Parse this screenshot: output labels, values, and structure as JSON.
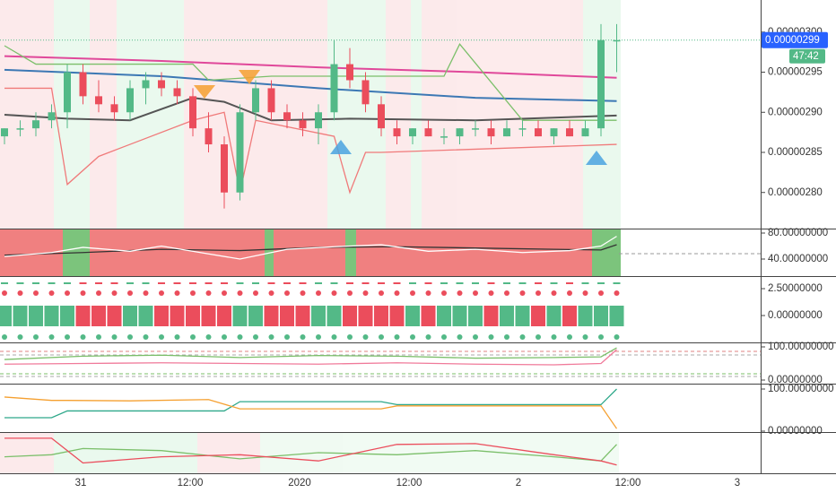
{
  "chart_data": [
    {
      "type": "candlestick",
      "open": [
        2.87e-06,
        2.88e-06,
        2.88e-06,
        2.89e-06,
        2.9e-06,
        2.95e-06,
        2.92e-06,
        2.91e-06,
        2.9e-06,
        2.93e-06,
        2.94e-06,
        2.93e-06,
        2.92e-06,
        2.88e-06,
        2.86e-06,
        2.8e-06,
        2.9e-06,
        2.93e-06,
        2.9e-06,
        2.89e-06,
        2.88e-06,
        2.9e-06,
        2.96e-06,
        2.94e-06,
        2.91e-06,
        2.88e-06,
        2.87e-06,
        2.88e-06,
        2.87e-06,
        2.87e-06,
        2.88e-06,
        2.88e-06,
        2.87e-06,
        2.88e-06,
        2.88e-06,
        2.87e-06,
        2.88e-06,
        2.87e-06,
        2.88e-06,
        2.99e-06
      ],
      "high": [
        2.88e-06,
        2.89e-06,
        2.9e-06,
        2.91e-06,
        2.96e-06,
        2.96e-06,
        2.94e-06,
        2.92e-06,
        2.94e-06,
        2.95e-06,
        2.95e-06,
        2.94e-06,
        2.93e-06,
        2.9e-06,
        2.87e-06,
        2.91e-06,
        2.94e-06,
        2.94e-06,
        2.91e-06,
        2.9e-06,
        2.91e-06,
        2.99e-06,
        2.98e-06,
        2.95e-06,
        2.92e-06,
        2.89e-06,
        2.88e-06,
        2.89e-06,
        2.88e-06,
        2.88e-06,
        2.89e-06,
        2.89e-06,
        2.89e-06,
        2.89e-06,
        2.89e-06,
        2.88e-06,
        2.89e-06,
        2.89e-06,
        3.01e-06,
        3.01e-06
      ],
      "low": [
        2.86e-06,
        2.87e-06,
        2.87e-06,
        2.88e-06,
        2.88e-06,
        2.91e-06,
        2.9e-06,
        2.89e-06,
        2.89e-06,
        2.91e-06,
        2.92e-06,
        2.91e-06,
        2.87e-06,
        2.85e-06,
        2.78e-06,
        2.79e-06,
        2.89e-06,
        2.89e-06,
        2.88e-06,
        2.87e-06,
        2.86e-06,
        2.89e-06,
        2.93e-06,
        2.9e-06,
        2.87e-06,
        2.86e-06,
        2.86e-06,
        2.87e-06,
        2.86e-06,
        2.86e-06,
        2.87e-06,
        2.86e-06,
        2.87e-06,
        2.87e-06,
        2.87e-06,
        2.86e-06,
        2.87e-06,
        2.87e-06,
        2.87e-06,
        2.95e-06
      ],
      "close": [
        2.88e-06,
        2.88e-06,
        2.89e-06,
        2.9e-06,
        2.95e-06,
        2.92e-06,
        2.91e-06,
        2.9e-06,
        2.93e-06,
        2.94e-06,
        2.93e-06,
        2.92e-06,
        2.88e-06,
        2.86e-06,
        2.8e-06,
        2.9e-06,
        2.93e-06,
        2.9e-06,
        2.89e-06,
        2.88e-06,
        2.9e-06,
        2.96e-06,
        2.94e-06,
        2.91e-06,
        2.88e-06,
        2.87e-06,
        2.88e-06,
        2.87e-06,
        2.87e-06,
        2.88e-06,
        2.88e-06,
        2.87e-06,
        2.88e-06,
        2.88e-06,
        2.87e-06,
        2.88e-06,
        2.87e-06,
        2.88e-06,
        2.99e-06,
        2.99e-06
      ],
      "up_color": "#53b987",
      "down_color": "#eb4d5c",
      "ylim": [
        2.755e-06,
        3.04e-06
      ],
      "yticks": [
        {
          "value": 2.8e-06,
          "label": "0.00000280"
        },
        {
          "value": 2.85e-06,
          "label": "0.00000285"
        },
        {
          "value": 2.9e-06,
          "label": "0.00000290"
        },
        {
          "value": 2.95e-06,
          "label": "0.00000295"
        },
        {
          "value": 3e-06,
          "label": "0.00000300"
        }
      ],
      "series": [
        {
          "color": "#e0489a",
          "x": [
            0,
            10,
            20,
            30,
            39
          ],
          "values": [
            2.97e-06,
            2.964e-06,
            2.956e-06,
            2.95e-06,
            2.943e-06
          ]
        },
        {
          "color": "#3c78b4",
          "x": [
            0,
            10,
            20,
            30,
            39
          ],
          "values": [
            2.953e-06,
            2.945e-06,
            2.93e-06,
            2.918e-06,
            2.914e-06
          ]
        },
        {
          "color": "#555555",
          "x": [
            0,
            4,
            8,
            12,
            14,
            17,
            22,
            30,
            39
          ],
          "values": [
            2.897e-06,
            2.892e-06,
            2.89e-06,
            2.918e-06,
            2.913e-06,
            2.89e-06,
            2.892e-06,
            2.89e-06,
            2.896e-06
          ]
        },
        {
          "color": "#7bbf6a",
          "x": [
            0,
            2,
            5,
            12,
            13,
            17,
            28,
            29,
            33,
            39
          ],
          "values": [
            2.983e-06,
            2.96e-06,
            2.96e-06,
            2.96e-06,
            2.94e-06,
            2.945e-06,
            2.945e-06,
            2.985e-06,
            2.89e-06,
            2.89e-06
          ]
        },
        {
          "color": "#f07a7a",
          "x": [
            0,
            3,
            4,
            6,
            8,
            12,
            14,
            15,
            16,
            21,
            22,
            23,
            24,
            39
          ],
          "values": [
            2.93e-06,
            2.93e-06,
            2.81e-06,
            2.845e-06,
            2.86e-06,
            2.89e-06,
            2.9e-06,
            2.8e-06,
            2.89e-06,
            2.87e-06,
            2.8e-06,
            2.85e-06,
            2.85e-06,
            2.86e-06
          ]
        }
      ],
      "last_price": 2.99e-06,
      "last_price_color": "#2962ff",
      "countdown": "47:42",
      "countdown_color": "#53b987",
      "x_labels": [
        "31",
        "12:00",
        "2020",
        "12:00",
        "2",
        "12:00",
        "3"
      ]
    },
    {
      "type": "line",
      "ylim": [
        13.8,
        86.9
      ],
      "yticks": [
        {
          "value": 80,
          "label": "80.00000000"
        },
        {
          "value": 40,
          "label": "40.00000000"
        }
      ],
      "series": [
        {
          "color": "#333333",
          "x": [
            0,
            5,
            10,
            15,
            20,
            25,
            30,
            35,
            38,
            39
          ],
          "values": [
            46,
            50,
            55,
            53,
            58,
            59,
            57,
            55,
            54,
            62
          ]
        },
        {
          "color": "#ffffff",
          "x": [
            0,
            3,
            5,
            8,
            10,
            13,
            15,
            18,
            21,
            24,
            27,
            30,
            33,
            36,
            38,
            39
          ],
          "values": [
            44,
            50,
            58,
            52,
            60,
            48,
            40,
            55,
            59,
            62,
            52,
            55,
            50,
            53,
            60,
            75
          ]
        }
      ]
    },
    {
      "type": "signals",
      "ylim": [
        -2.5,
        3.67
      ],
      "yticks": [
        {
          "value": 2.5,
          "label": "2.50000000"
        },
        {
          "value": 0,
          "label": "0.00000000"
        }
      ]
    },
    {
      "type": "line",
      "ylim": [
        -10.8,
        113.5
      ],
      "yticks": [
        {
          "value": 100,
          "label": "100.00000000"
        },
        {
          "value": 0,
          "label": "0.00000000"
        }
      ],
      "series": [
        {
          "color": "#7bbf6a",
          "x": [
            0,
            5,
            10,
            15,
            20,
            25,
            30,
            35,
            38,
            39
          ],
          "values": [
            62,
            72,
            75,
            68,
            74,
            72,
            66,
            68,
            70,
            97
          ]
        },
        {
          "color": "#f07a9a",
          "x": [
            0,
            5,
            10,
            15,
            20,
            25,
            30,
            35,
            38,
            39
          ],
          "values": [
            48,
            50,
            52,
            50,
            48,
            52,
            48,
            46,
            50,
            92
          ]
        }
      ]
    },
    {
      "type": "line",
      "ylim": [
        -2.1,
        112.8
      ],
      "yticks": [
        {
          "value": 100,
          "label": "100.00000000"
        },
        {
          "value": 0,
          "label": "0.00000000"
        }
      ],
      "series": [
        {
          "color": "#2ea88a",
          "x": [
            0,
            3,
            4,
            14,
            15,
            24,
            25,
            38,
            39
          ],
          "values": [
            32,
            32,
            48,
            48,
            70,
            70,
            63,
            63,
            100
          ]
        },
        {
          "color": "#f5a030",
          "x": [
            0,
            3,
            4,
            8,
            13,
            15,
            24,
            25,
            38,
            39
          ],
          "values": [
            81,
            73,
            73,
            72,
            75,
            53,
            53,
            60,
            60,
            6
          ]
        }
      ]
    },
    {
      "type": "line",
      "ylim": [
        0,
        100
      ],
      "series": [
        {
          "color": "#7bbf6a",
          "x": [
            0,
            3,
            5,
            10,
            15,
            20,
            25,
            30,
            35,
            38,
            39
          ],
          "values": [
            40,
            45,
            60,
            55,
            35,
            50,
            45,
            55,
            40,
            30,
            70
          ]
        },
        {
          "color": "#eb4d5c",
          "x": [
            0,
            3,
            5,
            10,
            15,
            20,
            25,
            30,
            35,
            38,
            39
          ],
          "values": [
            85,
            85,
            25,
            40,
            45,
            30,
            70,
            72,
            45,
            30,
            20
          ]
        }
      ]
    }
  ]
}
